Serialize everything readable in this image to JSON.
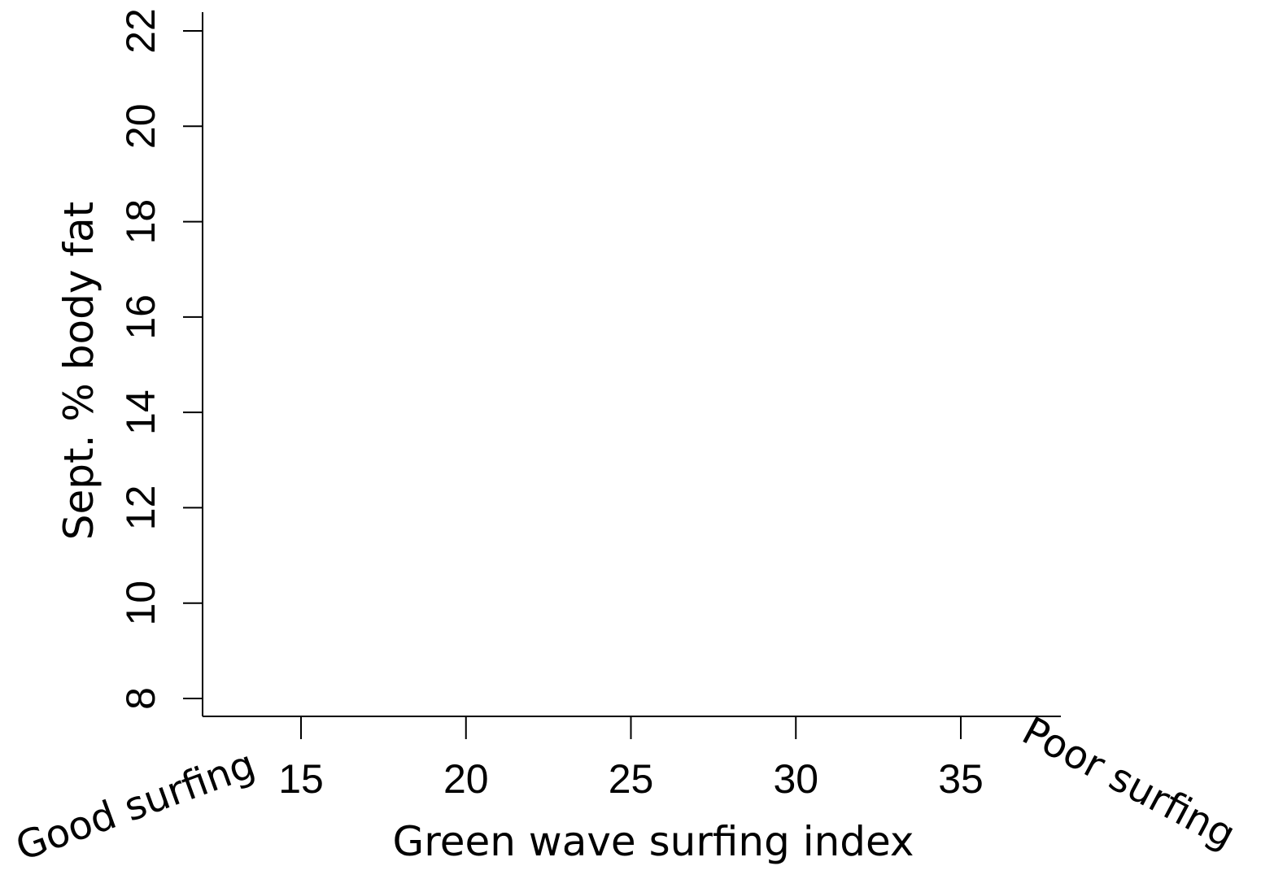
{
  "chart_data": {
    "type": "scatter",
    "title": "",
    "xlabel": "Green wave surfing index",
    "ylabel": "Sept. % body fat",
    "xlim": [
      12,
      38
    ],
    "ylim": [
      7.63,
      22.4
    ],
    "xticks": [
      15,
      20,
      25,
      30,
      35
    ],
    "yticks": [
      8,
      10,
      12,
      14,
      16,
      18,
      20,
      22
    ],
    "grid": false,
    "legend": "none",
    "annotations": {
      "left": "Good surfing",
      "right": "Poor surfing"
    },
    "series": [
      {
        "points": []
      }
    ],
    "colors": {
      "axis": "#000000",
      "background": "#ffffff"
    }
  }
}
